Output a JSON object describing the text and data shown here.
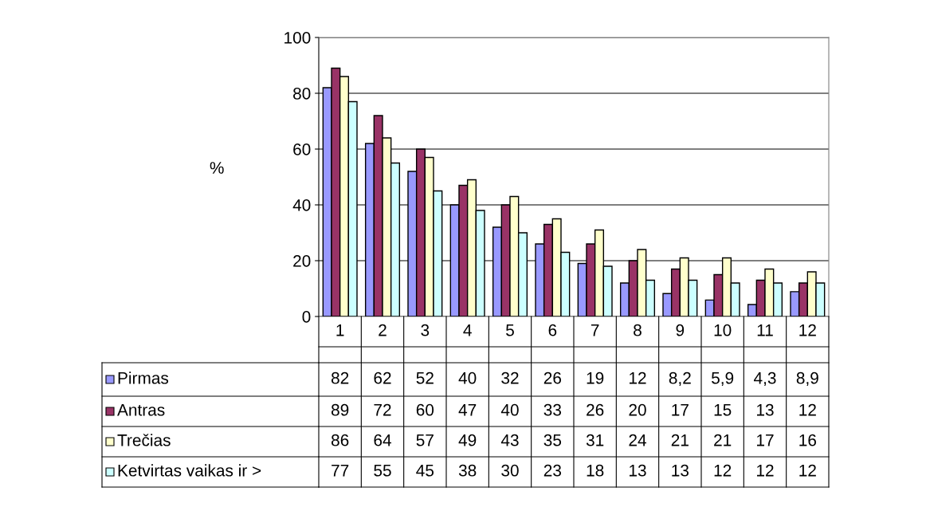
{
  "chart_data": {
    "type": "bar",
    "ylabel": "%",
    "categories": [
      "1",
      "2",
      "3",
      "4",
      "5",
      "6",
      "7",
      "8",
      "9",
      "10",
      "11",
      "12"
    ],
    "series": [
      {
        "name": "Pirmas",
        "color": "#9999ff",
        "values": [
          82,
          62,
          52,
          40,
          32,
          26,
          19,
          12,
          8.2,
          5.9,
          4.3,
          8.9
        ],
        "value_labels": [
          "82",
          "62",
          "52",
          "40",
          "32",
          "26",
          "19",
          "12",
          "8,2",
          "5,9",
          "4,3",
          "8,9"
        ]
      },
      {
        "name": "Antras",
        "color": "#993366",
        "values": [
          89,
          72,
          60,
          47,
          40,
          33,
          26,
          20,
          17,
          15,
          13,
          12
        ],
        "value_labels": [
          "89",
          "72",
          "60",
          "47",
          "40",
          "33",
          "26",
          "20",
          "17",
          "15",
          "13",
          "12"
        ]
      },
      {
        "name": "Trečias",
        "color": "#ffffcc",
        "values": [
          86,
          64,
          57,
          49,
          43,
          35,
          31,
          24,
          21,
          21,
          17,
          16
        ],
        "value_labels": [
          "86",
          "64",
          "57",
          "49",
          "43",
          "35",
          "31",
          "24",
          "21",
          "21",
          "17",
          "16"
        ]
      },
      {
        "name": "Ketvirtas vaikas ir >",
        "color": "#ccffff",
        "values": [
          77,
          55,
          45,
          38,
          30,
          23,
          18,
          13,
          13,
          12,
          12,
          12
        ],
        "value_labels": [
          "77",
          "55",
          "45",
          "38",
          "30",
          "23",
          "18",
          "13",
          "13",
          "12",
          "12",
          "12"
        ]
      }
    ],
    "ylim": [
      0,
      100
    ],
    "yticks": [
      0,
      20,
      40,
      60,
      80,
      100
    ],
    "grid": "y",
    "legend": "bottom"
  }
}
